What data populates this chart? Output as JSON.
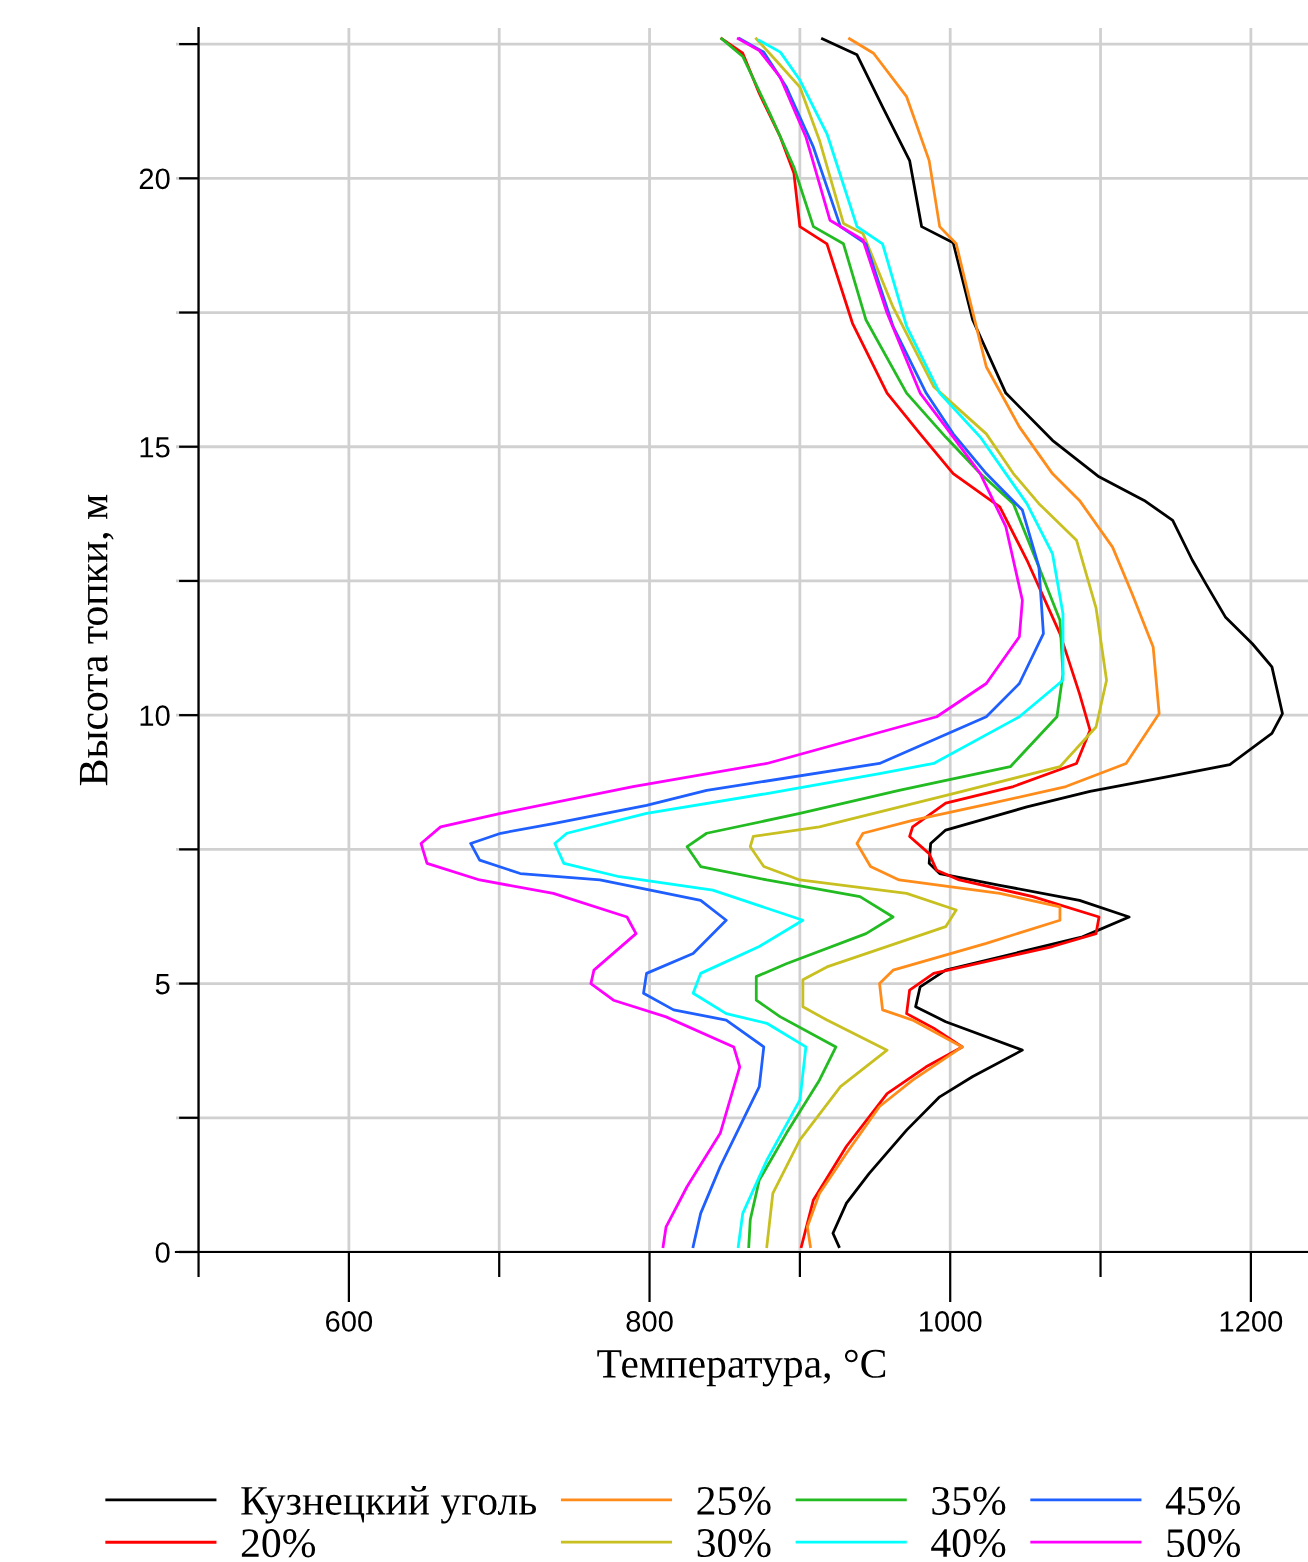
{
  "chart_data": {
    "type": "line",
    "xlabel": "Температура, °C",
    "ylabel": "Высота топки, м",
    "xlim": [
      485,
      1238
    ],
    "ylim": [
      0,
      22.8
    ],
    "xticks": [
      {
        "value": 500,
        "label": null
      },
      600,
      {
        "value": 700,
        "label": null
      },
      800,
      {
        "value": 900,
        "label": null
      },
      1000,
      {
        "value": 1100,
        "label": null
      },
      1200
    ],
    "yticks": [
      0,
      {
        "value": 2.5,
        "label": null
      },
      5,
      {
        "value": 7.5,
        "label": null
      },
      10,
      {
        "value": 12.5,
        "label": null
      },
      15,
      {
        "value": 17.5,
        "label": null
      },
      20,
      {
        "value": 22.5,
        "label": null
      }
    ],
    "grid": true,
    "legend": "bottom",
    "marker": "none",
    "line_style": "solid",
    "series": [
      {
        "name": "Кузнецкий уголь",
        "color": "#000000",
        "x": [
          926,
          922,
          931,
          946,
          971,
          993,
          1015,
          1048,
          997,
          977,
          980,
          997,
          1088,
          1119,
          1086,
          1033,
          993,
          986,
          987,
          997,
          1051,
          1093,
          1144,
          1186,
          1214,
          1221,
          1214,
          1201,
          1183,
          1170,
          1161,
          1148,
          1129,
          1099,
          1068,
          1037,
          1015,
          1002,
          981,
          973,
          955,
          938,
          915
        ],
        "values": [
          0.1,
          0.35,
          0.91,
          1.46,
          2.27,
          2.89,
          3.27,
          3.76,
          4.29,
          4.57,
          4.94,
          5.25,
          5.87,
          6.24,
          6.55,
          6.83,
          7.05,
          7.24,
          7.61,
          7.86,
          8.29,
          8.58,
          8.85,
          9.08,
          9.66,
          10.03,
          10.9,
          11.33,
          11.83,
          12.45,
          12.89,
          13.63,
          14.0,
          14.44,
          15.12,
          16.0,
          17.36,
          18.8,
          19.1,
          20.33,
          21.33,
          22.3,
          22.6
        ]
      },
      {
        "name": "20%",
        "color": "#ff0000",
        "x": [
          901,
          909,
          931,
          958,
          984,
          1008,
          989,
          971,
          973,
          989,
          1068,
          1097,
          1099,
          1055,
          1006,
          991,
          986,
          973,
          975,
          997,
          1042,
          1084,
          1093,
          1086,
          1073,
          1051,
          1033,
          1002,
          980,
          958,
          935,
          918,
          900,
          896,
          887,
          873,
          862,
          848
        ],
        "values": [
          0.1,
          0.97,
          1.97,
          2.95,
          3.45,
          3.82,
          4.17,
          4.44,
          4.88,
          5.19,
          5.69,
          5.93,
          6.24,
          6.62,
          6.93,
          7.11,
          7.42,
          7.74,
          7.92,
          8.36,
          8.67,
          9.1,
          9.72,
          10.4,
          11.52,
          12.89,
          13.88,
          14.5,
          15.24,
          16.0,
          17.3,
          18.78,
          19.1,
          20.1,
          20.77,
          21.58,
          22.33,
          22.6
        ]
      },
      {
        "name": "25%",
        "color": "#ff8c1a",
        "x": [
          907,
          905,
          913,
          931,
          953,
          975,
          1008,
          975,
          955,
          953,
          962,
          1024,
          1073,
          1073,
          1033,
          966,
          947,
          938,
          942,
          975,
          1028,
          1077,
          1117,
          1139,
          1135,
          1121,
          1108,
          1086,
          1068,
          1046,
          1024,
          1013,
          1004,
          993,
          986,
          971,
          949,
          933
        ],
        "values": [
          0.1,
          0.47,
          1.09,
          1.84,
          2.71,
          3.2,
          3.82,
          4.32,
          4.51,
          5.0,
          5.25,
          5.75,
          6.18,
          6.43,
          6.68,
          6.93,
          7.18,
          7.61,
          7.8,
          8.04,
          8.36,
          8.67,
          9.1,
          10.03,
          11.27,
          12.26,
          13.13,
          14.0,
          14.5,
          15.37,
          16.49,
          17.73,
          18.78,
          19.1,
          20.33,
          21.52,
          22.33,
          22.6
        ]
      },
      {
        "name": "30%",
        "color": "#c8c020",
        "x": [
          878,
          882,
          900,
          927,
          958,
          918,
          902,
          902,
          918,
          997,
          1004,
          971,
          900,
          876,
          867,
          869,
          913,
          1002,
          1073,
          1097,
          1104,
          1097,
          1084,
          1059,
          1042,
          1024,
          989,
          962,
          942,
          929,
          913,
          900,
          884,
          871
        ],
        "values": [
          0.1,
          1.09,
          2.09,
          3.08,
          3.76,
          4.32,
          4.57,
          5.07,
          5.31,
          6.06,
          6.37,
          6.68,
          6.93,
          7.18,
          7.55,
          7.74,
          7.92,
          8.54,
          9.04,
          9.78,
          10.65,
          12.0,
          13.26,
          13.94,
          14.5,
          15.24,
          16.12,
          17.6,
          18.97,
          19.16,
          20.71,
          21.7,
          22.2,
          22.6
        ]
      },
      {
        "name": "35%",
        "color": "#22bb22",
        "x": [
          866,
          867,
          873,
          891,
          913,
          924,
          887,
          871,
          871,
          891,
          944,
          962,
          940,
          878,
          834,
          825,
          838,
          900,
          966,
          1040,
          1071,
          1075,
          1073,
          1059,
          1042,
          1020,
          997,
          971,
          944,
          929,
          909,
          896,
          880,
          862,
          848
        ],
        "values": [
          0.1,
          0.6,
          1.34,
          2.21,
          3.2,
          3.82,
          4.38,
          4.69,
          5.13,
          5.37,
          5.93,
          6.24,
          6.62,
          6.93,
          7.18,
          7.55,
          7.8,
          8.17,
          8.6,
          9.04,
          9.97,
          10.77,
          11.77,
          12.76,
          13.94,
          14.5,
          15.18,
          16.0,
          17.36,
          18.78,
          19.1,
          20.21,
          21.21,
          22.27,
          22.6
        ]
      },
      {
        "name": "40%",
        "color": "#00ffff",
        "x": [
          859,
          862,
          878,
          900,
          904,
          878,
          851,
          829,
          834,
          873,
          902,
          842,
          780,
          743,
          737,
          745,
          798,
          878,
          953,
          989,
          1046,
          1075,
          1075,
          1068,
          1051,
          1037,
          1020,
          993,
          971,
          955,
          938,
          918,
          900,
          887,
          873
        ],
        "values": [
          0.1,
          0.72,
          1.71,
          2.83,
          3.82,
          4.26,
          4.44,
          4.82,
          5.19,
          5.69,
          6.18,
          6.74,
          6.99,
          7.24,
          7.61,
          7.8,
          8.17,
          8.54,
          8.91,
          9.1,
          9.97,
          10.65,
          11.89,
          13.01,
          13.94,
          14.5,
          15.18,
          16.0,
          17.24,
          18.78,
          19.1,
          20.83,
          21.83,
          22.35,
          22.57
        ]
      },
      {
        "name": "45%",
        "color": "#1f5fff",
        "x": [
          829,
          834,
          847,
          873,
          876,
          851,
          816,
          796,
          798,
          829,
          851,
          834,
          767,
          714,
          687,
          681,
          701,
          736,
          798,
          838,
          953,
          1024,
          1046,
          1062,
          1059,
          1048,
          1024,
          1002,
          984,
          962,
          944,
          927,
          909,
          891,
          876,
          860
        ],
        "values": [
          0.1,
          0.72,
          1.59,
          3.08,
          3.82,
          4.32,
          4.51,
          4.82,
          5.19,
          5.56,
          6.18,
          6.55,
          6.93,
          7.05,
          7.3,
          7.61,
          7.8,
          7.98,
          8.32,
          8.6,
          9.1,
          9.97,
          10.59,
          11.52,
          12.76,
          13.82,
          14.5,
          15.24,
          16.0,
          17.24,
          18.78,
          19.1,
          20.58,
          21.7,
          22.35,
          22.6
        ]
      },
      {
        "name": "50%",
        "color": "#ff00ff",
        "x": [
          809,
          811,
          825,
          847,
          860,
          856,
          811,
          776,
          761,
          763,
          791,
          785,
          736,
          687,
          652,
          648,
          661,
          701,
          789,
          878,
          966,
          991,
          1024,
          1046,
          1048,
          1037,
          1020,
          997,
          980,
          958,
          942,
          920,
          904,
          887,
          873,
          859
        ],
        "values": [
          0.1,
          0.47,
          1.22,
          2.21,
          3.45,
          3.82,
          4.38,
          4.69,
          5.0,
          5.25,
          5.93,
          6.24,
          6.68,
          6.93,
          7.24,
          7.61,
          7.92,
          8.17,
          8.67,
          9.1,
          9.78,
          9.97,
          10.59,
          11.46,
          12.14,
          13.51,
          14.5,
          15.37,
          16.0,
          17.49,
          18.85,
          19.22,
          20.77,
          21.88,
          22.38,
          22.6
        ]
      }
    ]
  }
}
